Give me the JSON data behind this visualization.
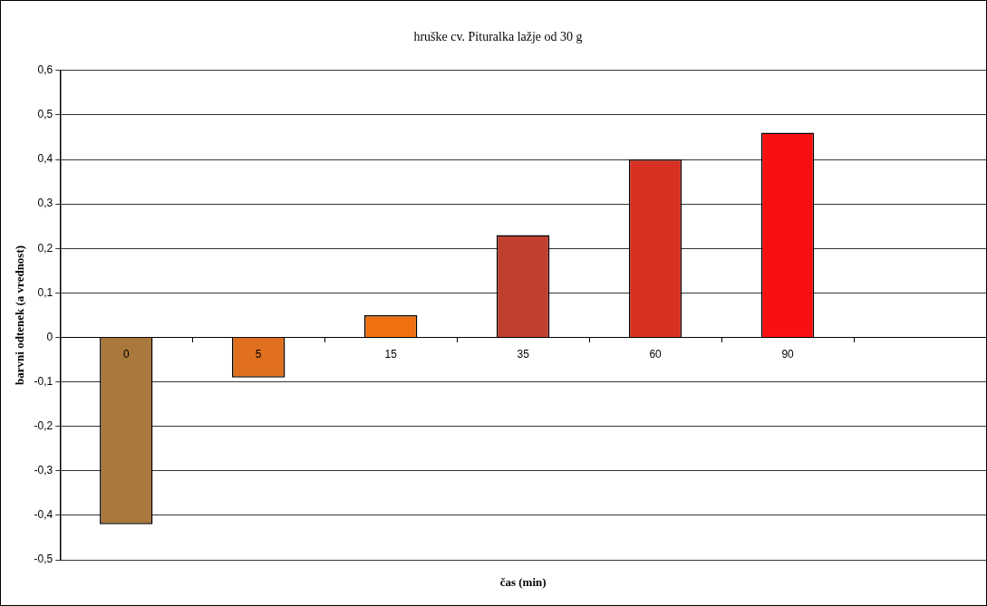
{
  "chart_data": {
    "type": "bar",
    "title": "hruške cv. Pituralka lažje od 30 g",
    "xlabel": "čas (min)",
    "ylabel": "barvni odtenek (a vrednost)",
    "categories": [
      "0",
      "5",
      "15",
      "35",
      "60",
      "90",
      null
    ],
    "values": [
      -0.42,
      -0.09,
      0.05,
      0.23,
      0.4,
      0.46,
      null
    ],
    "colors": [
      "#a8783c",
      "#e07020",
      "#f07010",
      "#c04030",
      "#d83020",
      "#f81010",
      "#f81010"
    ],
    "ylim": [
      -0.5,
      0.6
    ],
    "yticks": [
      {
        "value": -0.5,
        "label": "-0,5"
      },
      {
        "value": -0.4,
        "label": "-0,4"
      },
      {
        "value": -0.3,
        "label": "-0,3"
      },
      {
        "value": -0.2,
        "label": "-0,2"
      },
      {
        "value": -0.1,
        "label": "-0,1"
      },
      {
        "value": 0,
        "label": "0"
      },
      {
        "value": 0.1,
        "label": "0,1"
      },
      {
        "value": 0.2,
        "label": "0,2"
      },
      {
        "value": 0.3,
        "label": "0,3"
      },
      {
        "value": 0.4,
        "label": "0,4"
      },
      {
        "value": 0.5,
        "label": "0,5"
      },
      {
        "value": 0.6,
        "label": "0,6"
      }
    ],
    "grid": "y",
    "legend": false
  }
}
